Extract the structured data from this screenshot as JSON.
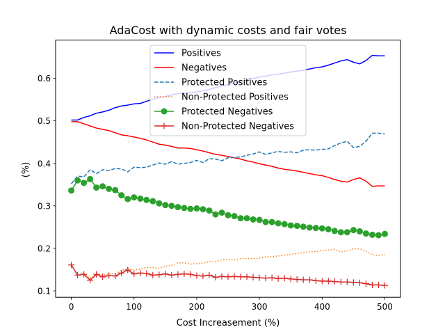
{
  "chart_data": {
    "type": "line",
    "title": "AdaCost with dynamic costs and fair votes",
    "xlabel": "Cost Increasement (%)",
    "ylabel": "(%)",
    "xlim": [
      -25,
      525
    ],
    "ylim": [
      0.085,
      0.69
    ],
    "xticks": [
      0,
      100,
      200,
      300,
      400,
      500
    ],
    "yticks": [
      0.1,
      0.2,
      0.3,
      0.4,
      0.5,
      0.6
    ],
    "grid": false,
    "legend_position": "upper center",
    "x": [
      0,
      10,
      20,
      30,
      40,
      50,
      60,
      70,
      80,
      90,
      100,
      110,
      120,
      130,
      140,
      150,
      160,
      170,
      180,
      190,
      200,
      210,
      220,
      230,
      240,
      250,
      260,
      270,
      280,
      290,
      300,
      310,
      320,
      330,
      340,
      350,
      360,
      370,
      380,
      390,
      400,
      410,
      420,
      430,
      440,
      450,
      460,
      470,
      480,
      490,
      500
    ],
    "series": [
      {
        "name": "Positives",
        "color": "#0000ff",
        "style": "solid",
        "marker": "none",
        "values": [
          0.502,
          0.502,
          0.508,
          0.512,
          0.518,
          0.521,
          0.525,
          0.531,
          0.535,
          0.537,
          0.54,
          0.541,
          0.546,
          0.551,
          0.555,
          0.557,
          0.561,
          0.564,
          0.565,
          0.566,
          0.568,
          0.571,
          0.574,
          0.578,
          0.582,
          0.585,
          0.589,
          0.592,
          0.596,
          0.6,
          0.603,
          0.605,
          0.608,
          0.61,
          0.612,
          0.615,
          0.617,
          0.619,
          0.622,
          0.625,
          0.627,
          0.631,
          0.636,
          0.641,
          0.644,
          0.638,
          0.634,
          0.642,
          0.654,
          0.653,
          0.653
        ]
      },
      {
        "name": "Negatives",
        "color": "#ff0000",
        "style": "solid",
        "marker": "none",
        "values": [
          0.498,
          0.498,
          0.493,
          0.488,
          0.483,
          0.48,
          0.477,
          0.472,
          0.467,
          0.465,
          0.462,
          0.459,
          0.455,
          0.45,
          0.445,
          0.443,
          0.44,
          0.436,
          0.436,
          0.435,
          0.432,
          0.429,
          0.425,
          0.421,
          0.419,
          0.416,
          0.413,
          0.41,
          0.406,
          0.403,
          0.399,
          0.396,
          0.393,
          0.389,
          0.386,
          0.384,
          0.382,
          0.379,
          0.376,
          0.373,
          0.371,
          0.367,
          0.362,
          0.358,
          0.356,
          0.362,
          0.366,
          0.358,
          0.346,
          0.347,
          0.347
        ]
      },
      {
        "name": "Protected Positives",
        "color": "#1f77b4",
        "style": "dashed",
        "marker": "none",
        "values": [
          0.352,
          0.37,
          0.368,
          0.385,
          0.376,
          0.385,
          0.383,
          0.388,
          0.387,
          0.38,
          0.391,
          0.39,
          0.391,
          0.396,
          0.401,
          0.398,
          0.404,
          0.398,
          0.4,
          0.402,
          0.407,
          0.402,
          0.411,
          0.41,
          0.406,
          0.413,
          0.414,
          0.415,
          0.419,
          0.422,
          0.427,
          0.421,
          0.425,
          0.428,
          0.426,
          0.427,
          0.425,
          0.431,
          0.432,
          0.431,
          0.433,
          0.434,
          0.442,
          0.448,
          0.452,
          0.437,
          0.44,
          0.452,
          0.471,
          0.471,
          0.469
        ]
      },
      {
        "name": "Non-Protected Positives",
        "color": "#ff7f0e",
        "style": "dotted",
        "marker": "none",
        "values": [
          0.162,
          0.136,
          0.142,
          0.128,
          0.141,
          0.137,
          0.14,
          0.141,
          0.148,
          0.153,
          0.149,
          0.152,
          0.155,
          0.155,
          0.153,
          0.158,
          0.16,
          0.166,
          0.166,
          0.163,
          0.164,
          0.165,
          0.169,
          0.168,
          0.173,
          0.174,
          0.173,
          0.176,
          0.176,
          0.176,
          0.177,
          0.18,
          0.181,
          0.182,
          0.184,
          0.186,
          0.188,
          0.19,
          0.192,
          0.193,
          0.195,
          0.196,
          0.198,
          0.192,
          0.194,
          0.199,
          0.199,
          0.193,
          0.185,
          0.183,
          0.186
        ]
      },
      {
        "name": "Protected Negatives",
        "color": "#2ca02c",
        "style": "solid",
        "marker": "circle",
        "values": [
          0.336,
          0.36,
          0.354,
          0.363,
          0.343,
          0.346,
          0.34,
          0.337,
          0.325,
          0.316,
          0.32,
          0.317,
          0.314,
          0.311,
          0.306,
          0.302,
          0.3,
          0.297,
          0.295,
          0.293,
          0.294,
          0.292,
          0.289,
          0.28,
          0.284,
          0.278,
          0.276,
          0.271,
          0.271,
          0.268,
          0.267,
          0.262,
          0.262,
          0.259,
          0.257,
          0.254,
          0.253,
          0.251,
          0.249,
          0.248,
          0.247,
          0.245,
          0.241,
          0.238,
          0.238,
          0.243,
          0.24,
          0.235,
          0.232,
          0.231,
          0.234
        ]
      },
      {
        "name": "Non-Protected Negatives",
        "color": "#d62728",
        "style": "solid",
        "marker": "plus",
        "values": [
          0.161,
          0.137,
          0.139,
          0.125,
          0.139,
          0.133,
          0.136,
          0.135,
          0.142,
          0.149,
          0.14,
          0.142,
          0.141,
          0.137,
          0.138,
          0.14,
          0.137,
          0.139,
          0.14,
          0.139,
          0.136,
          0.135,
          0.137,
          0.132,
          0.134,
          0.133,
          0.134,
          0.133,
          0.133,
          0.132,
          0.131,
          0.13,
          0.131,
          0.129,
          0.13,
          0.128,
          0.127,
          0.126,
          0.126,
          0.124,
          0.123,
          0.123,
          0.122,
          0.121,
          0.121,
          0.12,
          0.119,
          0.117,
          0.114,
          0.114,
          0.113
        ]
      }
    ]
  }
}
